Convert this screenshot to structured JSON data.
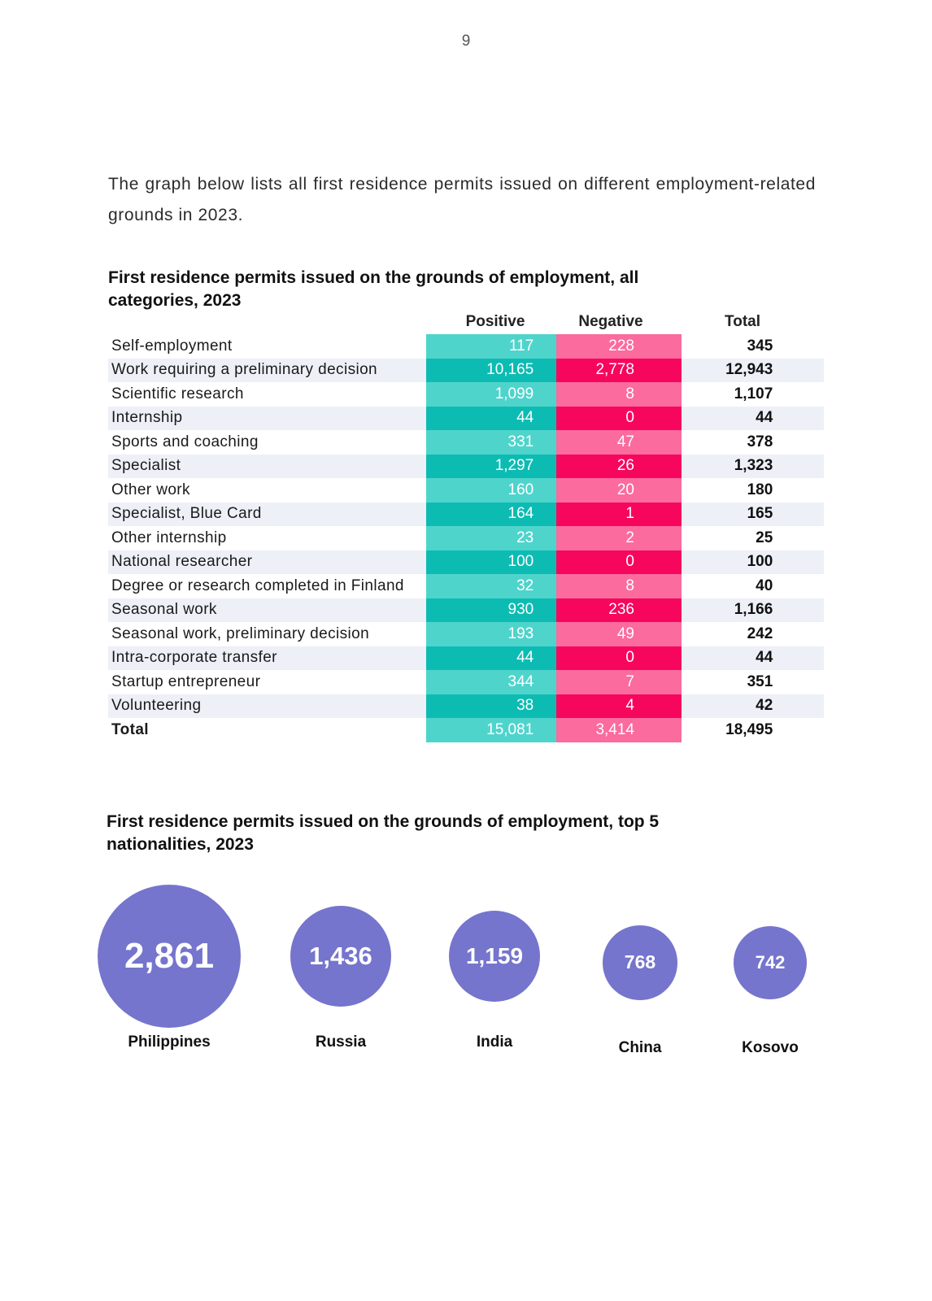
{
  "page_number": "9",
  "intro_text": "The graph below lists all first residence permits issued on different employment-related grounds in 2023.",
  "table": {
    "title": "First residence permits issued on the grounds of employment, all categories, 2023",
    "headers": {
      "positive": "Positive",
      "negative": "Negative",
      "total": "Total"
    },
    "rows": [
      {
        "category": "Self-employment",
        "positive": "117",
        "negative": "228",
        "total": "345"
      },
      {
        "category": "Work requiring a preliminary decision",
        "positive": "10,165",
        "negative": "2,778",
        "total": "12,943"
      },
      {
        "category": "Scientific research",
        "positive": "1,099",
        "negative": "8",
        "total": "1,107"
      },
      {
        "category": "Internship",
        "positive": "44",
        "negative": "0",
        "total": "44"
      },
      {
        "category": "Sports and coaching",
        "positive": "331",
        "negative": "47",
        "total": "378"
      },
      {
        "category": "Specialist",
        "positive": "1,297",
        "negative": "26",
        "total": "1,323"
      },
      {
        "category": "Other work",
        "positive": "160",
        "negative": "20",
        "total": "180"
      },
      {
        "category": "Specialist, Blue Card",
        "positive": "164",
        "negative": "1",
        "total": "165"
      },
      {
        "category": "Other internship",
        "positive": "23",
        "negative": "2",
        "total": "25"
      },
      {
        "category": "National researcher",
        "positive": "100",
        "negative": "0",
        "total": "100"
      },
      {
        "category": "Degree or research completed in Finland",
        "positive": "32",
        "negative": "8",
        "total": "40"
      },
      {
        "category": "Seasonal work",
        "positive": "930",
        "negative": "236",
        "total": "1,166"
      },
      {
        "category": "Seasonal work, preliminary decision",
        "positive": "193",
        "negative": "49",
        "total": "242"
      },
      {
        "category": "Intra-corporate transfer",
        "positive": "44",
        "negative": "0",
        "total": "44"
      },
      {
        "category": "Startup entrepreneur",
        "positive": "344",
        "negative": "7",
        "total": "351"
      },
      {
        "category": "Volunteering",
        "positive": "38",
        "negative": "4",
        "total": "42"
      }
    ],
    "total_row": {
      "category": "Total",
      "positive": "15,081",
      "negative": "3,414",
      "total": "18,495"
    }
  },
  "chart_data": {
    "type": "bubble",
    "title": "First residence permits issued on the grounds of employment, top 5 nationalities, 2023",
    "categories": [
      "Philippines",
      "Russia",
      "India",
      "China",
      "Kosovo"
    ],
    "values": [
      2861,
      1436,
      1159,
      768,
      742
    ],
    "value_labels": [
      "2,861",
      "1,436",
      "1,159",
      "768",
      "742"
    ],
    "color": "#7575cd"
  },
  "colors": {
    "positive_light": "#4fd4cc",
    "positive_dark": "#0cbcb3",
    "negative_light": "#fb6b9e",
    "negative_dark": "#f6075d",
    "stripe": "#eef0f7"
  }
}
